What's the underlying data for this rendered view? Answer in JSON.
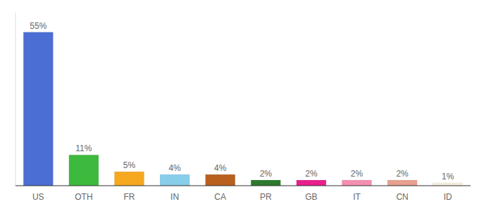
{
  "chart_data": {
    "type": "bar",
    "categories": [
      "US",
      "OTH",
      "FR",
      "IN",
      "CA",
      "PR",
      "GB",
      "IT",
      "CN",
      "ID"
    ],
    "values": [
      55,
      11,
      5,
      4,
      4,
      2,
      2,
      2,
      2,
      1
    ],
    "value_labels": [
      "55%",
      "11%",
      "5%",
      "4%",
      "4%",
      "2%",
      "2%",
      "2%",
      "2%",
      "1%"
    ],
    "colors": [
      "#4b6ed4",
      "#3dba3d",
      "#f5a820",
      "#87ceeb",
      "#b8601e",
      "#2d7a2d",
      "#e91e8c",
      "#f48fb1",
      "#e8a090",
      "#f5f0dc"
    ],
    "ylim": [
      0,
      62
    ],
    "data_labels": true,
    "tick_labels": "x",
    "grid": false
  }
}
